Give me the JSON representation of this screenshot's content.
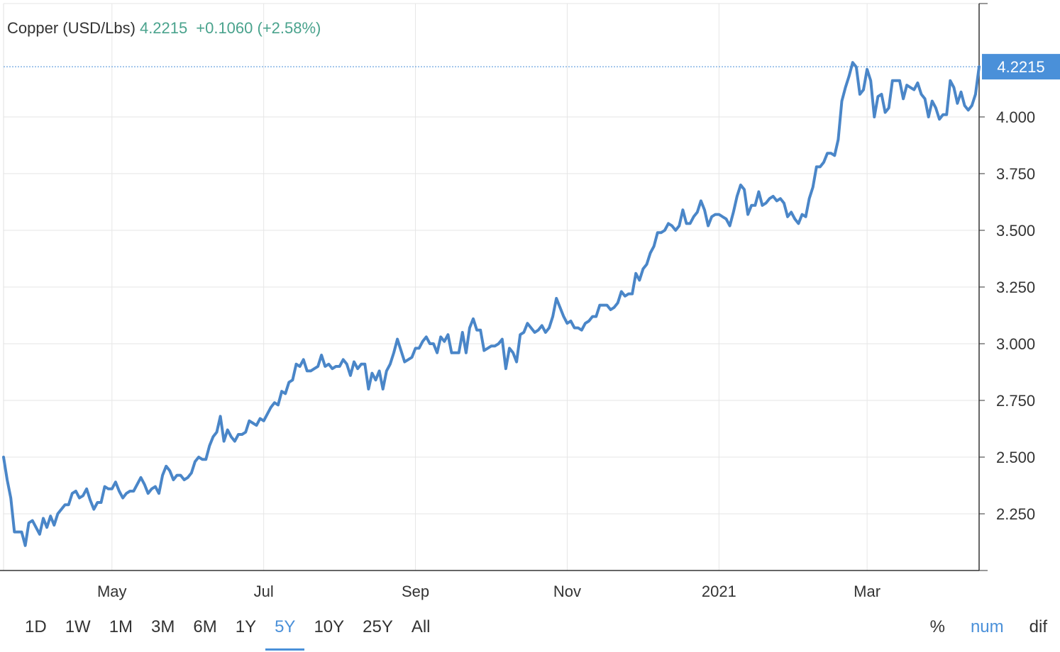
{
  "header": {
    "name": "Copper (USD/Lbs)",
    "price": "4.2215",
    "change": "+0.1060 (+2.58%)"
  },
  "range_buttons": [
    {
      "label": "1D",
      "active": false
    },
    {
      "label": "1W",
      "active": false
    },
    {
      "label": "1M",
      "active": false
    },
    {
      "label": "3M",
      "active": false
    },
    {
      "label": "6M",
      "active": false
    },
    {
      "label": "1Y",
      "active": false
    },
    {
      "label": "5Y",
      "active": true
    },
    {
      "label": "10Y",
      "active": false
    },
    {
      "label": "25Y",
      "active": false
    },
    {
      "label": "All",
      "active": false
    }
  ],
  "mode_buttons": [
    {
      "label": "%",
      "active": false
    },
    {
      "label": "num",
      "active": true
    },
    {
      "label": "dif",
      "active": false
    }
  ],
  "colors": {
    "line": "#4a86c8",
    "accent": "#4a90d9",
    "up": "#4aa38d",
    "grid": "#e6e6e6"
  },
  "chart_data": {
    "type": "line",
    "series": [
      {
        "values": [
          2.5,
          2.4,
          2.32,
          2.17,
          2.17,
          2.17,
          2.11,
          2.21,
          2.22,
          2.19,
          2.16,
          2.23,
          2.19,
          2.24,
          2.2,
          2.25,
          2.27,
          2.29,
          2.29,
          2.34,
          2.35,
          2.32,
          2.33,
          2.36,
          2.31,
          2.27,
          2.3,
          2.3,
          2.37,
          2.36,
          2.36,
          2.39,
          2.35,
          2.32,
          2.34,
          2.35,
          2.35,
          2.38,
          2.41,
          2.38,
          2.34,
          2.36,
          2.37,
          2.34,
          2.42,
          2.46,
          2.44,
          2.4,
          2.42,
          2.42,
          2.4,
          2.41,
          2.43,
          2.48,
          2.5,
          2.49,
          2.49,
          2.55,
          2.59,
          2.61,
          2.68,
          2.57,
          2.62,
          2.59,
          2.57,
          2.6,
          2.6,
          2.61,
          2.66,
          2.65,
          2.64,
          2.67,
          2.66,
          2.69,
          2.72,
          2.74,
          2.73,
          2.79,
          2.78,
          2.83,
          2.84,
          2.91,
          2.9,
          2.93,
          2.88,
          2.88,
          2.89,
          2.9,
          2.95,
          2.9,
          2.91,
          2.89,
          2.9,
          2.9,
          2.93,
          2.91,
          2.86,
          2.92,
          2.89,
          2.91,
          2.91,
          2.8,
          2.87,
          2.84,
          2.88,
          2.8,
          2.88,
          2.91,
          2.96,
          3.02,
          2.97,
          2.92,
          2.93,
          2.94,
          2.98,
          2.98,
          3.01,
          3.03,
          3.0,
          3.0,
          2.96,
          3.03,
          3.01,
          3.04,
          2.96,
          2.96,
          2.96,
          3.05,
          2.96,
          3.07,
          3.11,
          3.06,
          3.06,
          2.97,
          2.98,
          2.99,
          2.99,
          3.0,
          3.02,
          2.89,
          2.98,
          2.96,
          2.92,
          3.04,
          3.05,
          3.09,
          3.07,
          3.05,
          3.06,
          3.08,
          3.05,
          3.07,
          3.12,
          3.2,
          3.16,
          3.12,
          3.09,
          3.1,
          3.07,
          3.07,
          3.06,
          3.09,
          3.1,
          3.12,
          3.12,
          3.17,
          3.17,
          3.17,
          3.15,
          3.16,
          3.18,
          3.23,
          3.21,
          3.22,
          3.22,
          3.31,
          3.28,
          3.33,
          3.35,
          3.4,
          3.43,
          3.49,
          3.49,
          3.5,
          3.53,
          3.52,
          3.5,
          3.52,
          3.59,
          3.53,
          3.53,
          3.56,
          3.58,
          3.63,
          3.59,
          3.52,
          3.56,
          3.57,
          3.57,
          3.56,
          3.55,
          3.52,
          3.58,
          3.65,
          3.7,
          3.68,
          3.57,
          3.61,
          3.61,
          3.67,
          3.61,
          3.62,
          3.64,
          3.65,
          3.63,
          3.64,
          3.62,
          3.56,
          3.58,
          3.55,
          3.53,
          3.57,
          3.56,
          3.64,
          3.69,
          3.78,
          3.78,
          3.8,
          3.84,
          3.84,
          3.83,
          3.9,
          4.07,
          4.13,
          4.18,
          4.24,
          4.22,
          4.1,
          4.12,
          4.21,
          4.16,
          4.0,
          4.09,
          4.1,
          4.02,
          4.04,
          4.16,
          4.16,
          4.16,
          4.08,
          4.14,
          4.13,
          4.12,
          4.15,
          4.1,
          4.08,
          4.0,
          4.07,
          4.04,
          3.99,
          4.01,
          4.01,
          4.16,
          4.13,
          4.06,
          4.11,
          4.05,
          4.03,
          4.05,
          4.1,
          4.2215
        ]
      }
    ],
    "x_ticks": [
      "May",
      "Jul",
      "Sep",
      "Nov",
      "2021",
      "Mar"
    ],
    "y_ticks": [
      "4.000",
      "3.750",
      "3.500",
      "3.250",
      "3.000",
      "2.750",
      "2.500",
      "2.250"
    ],
    "ylim": [
      2.0,
      4.5
    ],
    "last_value_label": "4.2215",
    "grid": true
  }
}
